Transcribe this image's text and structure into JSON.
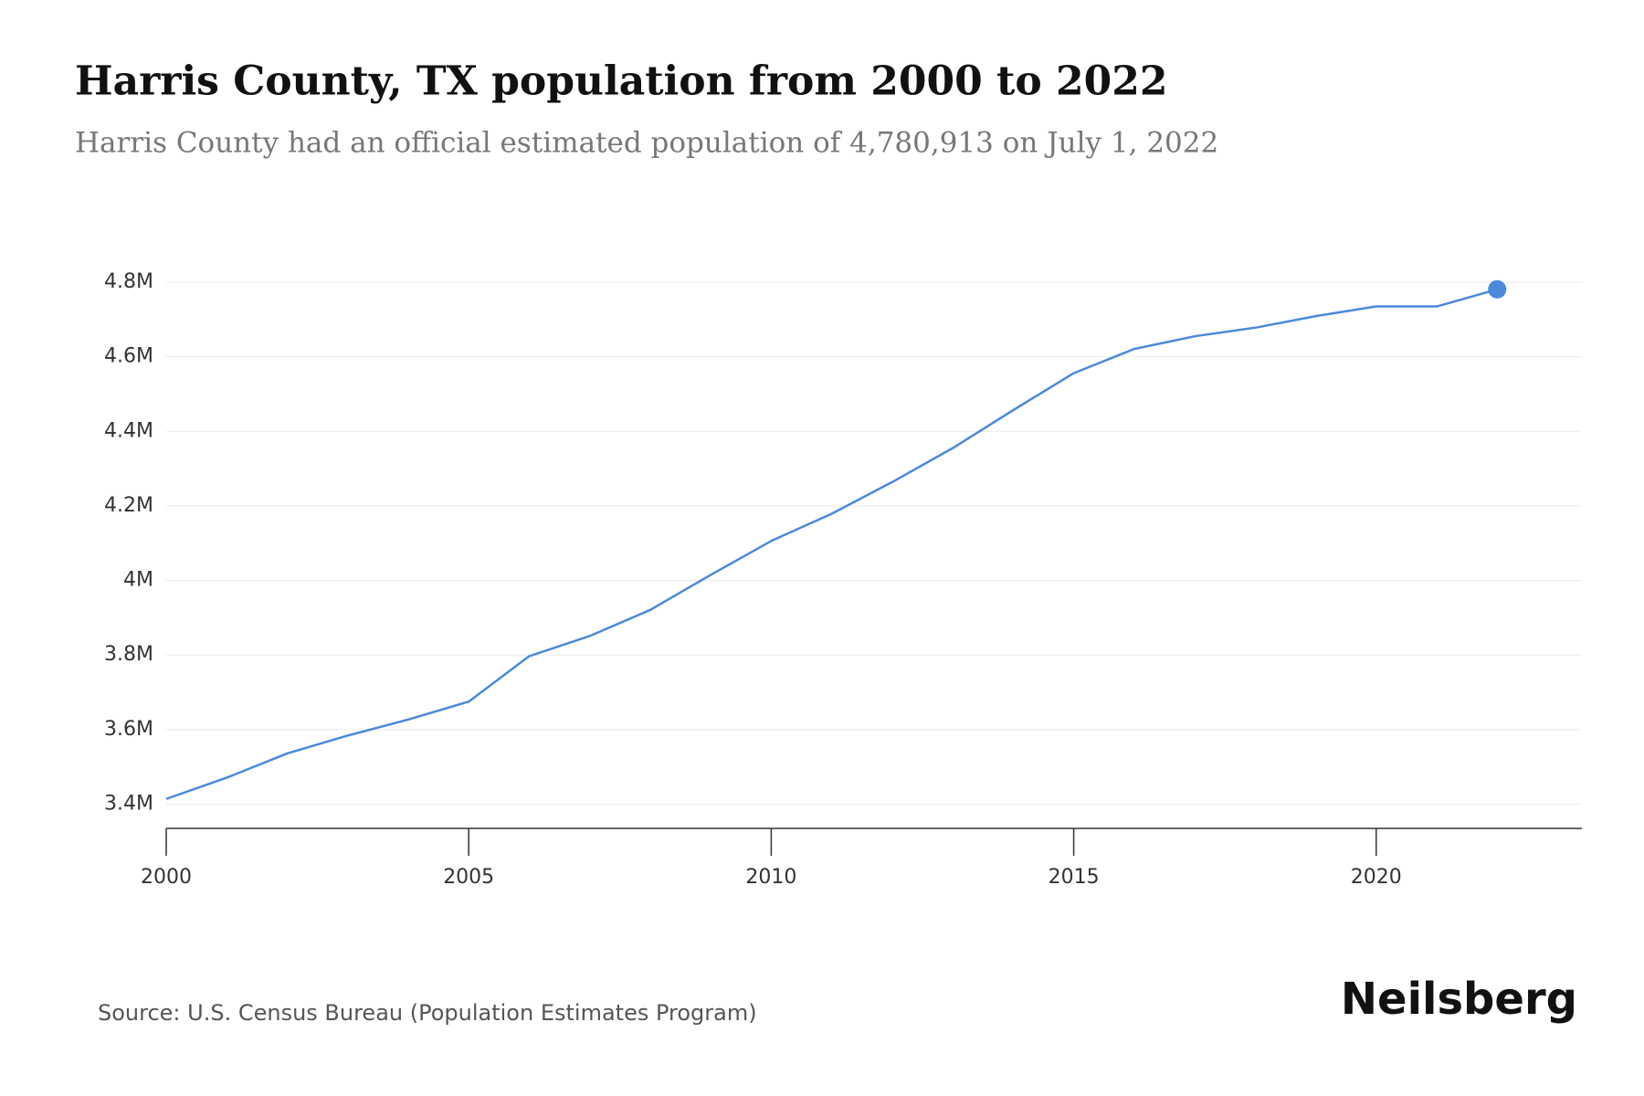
{
  "chart_data": {
    "type": "line",
    "title": "Harris County, TX population from 2000 to 2022",
    "subtitle": "Harris County had an official estimated population of 4,780,913 on July 1, 2022",
    "source": "Source: U.S. Census Bureau (Population Estimates Program)",
    "brand": "Neilsberg",
    "x": [
      2000,
      2001,
      2002,
      2003,
      2004,
      2005,
      2006,
      2007,
      2008,
      2009,
      2010,
      2011,
      2012,
      2013,
      2014,
      2015,
      2016,
      2017,
      2018,
      2019,
      2020,
      2021,
      2022
    ],
    "values": [
      3414000,
      3471000,
      3536000,
      3584000,
      3627000,
      3675000,
      3797000,
      3851000,
      3921000,
      4015000,
      4106000,
      4179000,
      4264000,
      4355000,
      4457000,
      4556000,
      4621000,
      4655000,
      4678000,
      4709000,
      4735000,
      4735000,
      4780913
    ],
    "color": "#4a89dc",
    "marker_last": true,
    "xlim": [
      2000,
      2023.4
    ],
    "xticks": [
      2000,
      2005,
      2010,
      2015,
      2020
    ],
    "ylim": [
      3335000,
      4800000
    ],
    "yticks": [
      {
        "value": 3400000,
        "label": "3.4M"
      },
      {
        "value": 3600000,
        "label": "3.6M"
      },
      {
        "value": 3800000,
        "label": "3.8M"
      },
      {
        "value": 4000000,
        "label": "4M"
      },
      {
        "value": 4200000,
        "label": "4.2M"
      },
      {
        "value": 4400000,
        "label": "4.4M"
      },
      {
        "value": 4600000,
        "label": "4.6M"
      },
      {
        "value": 4800000,
        "label": "4.8M"
      }
    ],
    "grid": true
  }
}
